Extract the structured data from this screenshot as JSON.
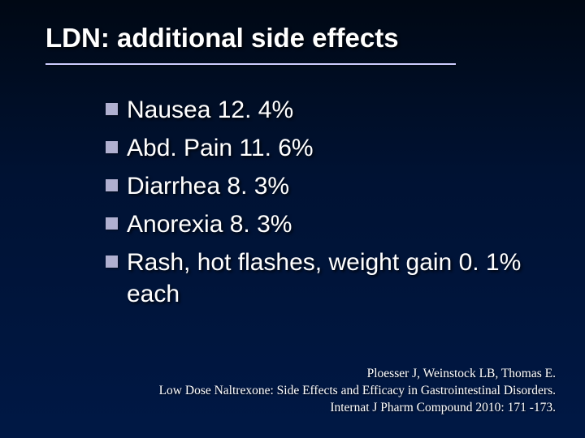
{
  "slide": {
    "title": "LDN: additional side effects",
    "title_color": "#ffffff",
    "title_fontsize": 33,
    "underline_color": "#ccccff",
    "underline_width": 505,
    "background_gradient": [
      "#000814",
      "#001233",
      "#001845"
    ],
    "bullets": [
      {
        "text": "Nausea 12. 4%"
      },
      {
        "text": "Abd. Pain 11. 6%"
      },
      {
        "text": "Diarrhea 8. 3%"
      },
      {
        "text": "Anorexia 8. 3%"
      },
      {
        "text": "Rash, hot flashes, weight gain 0. 1% each"
      }
    ],
    "bullet_square_color": "#b0b0d0",
    "bullet_text_color": "#ffffff",
    "bullet_fontsize": 30,
    "citation": {
      "line1": "Ploesser J, Weinstock LB, Thomas E.",
      "line2": "Low Dose Naltrexone: Side Effects and Efficacy in Gastrointestinal Disorders.",
      "line3": "Internat J Pharm Compound 2010: 171 -173."
    },
    "citation_color": "#ffffff",
    "citation_fontsize": 15.5
  }
}
